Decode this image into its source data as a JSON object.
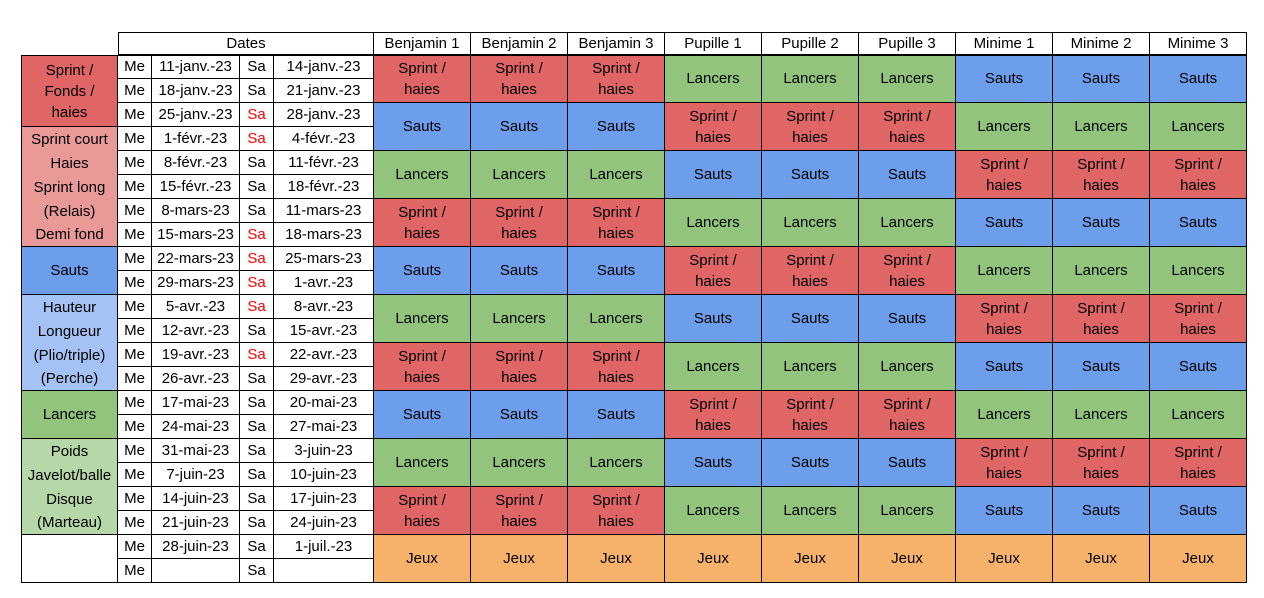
{
  "colors": {
    "sprint": "#e06666",
    "sauts": "#6d9eeb",
    "lancers": "#93c47d",
    "jeux": "#f6b26b",
    "sprint_light": "#ea9999",
    "sauts_light": "#a4c2f4",
    "lancers_light": "#b6d7a8",
    "weekend_red": "#ff0000"
  },
  "header": {
    "dates": "Dates",
    "groups": [
      "Benjamin 1",
      "Benjamin 2",
      "Benjamin 3",
      "Pupille 1",
      "Pupille 2",
      "Pupille 3",
      "Minime 1",
      "Minime 2",
      "Minime 3"
    ]
  },
  "sections": [
    {
      "label": "Sprint /\nFonds /\nhaies",
      "color": "sprint"
    },
    {
      "label": "Sprint court",
      "color": "sprint_light"
    },
    {
      "label": "Haies",
      "color": "sprint_light"
    },
    {
      "label": "Sprint long",
      "color": "sprint_light"
    },
    {
      "label": "(Relais)",
      "color": "sprint_light"
    },
    {
      "label": "Demi fond",
      "color": "sprint_light"
    },
    {
      "label": "Sauts",
      "color": "sauts"
    },
    {
      "label": "Hauteur",
      "color": "sauts_light"
    },
    {
      "label": "Longueur",
      "color": "sauts_light"
    },
    {
      "label": "(Plio/triple)",
      "color": "sauts_light"
    },
    {
      "label": "(Perche)",
      "color": "sauts_light"
    },
    {
      "label": "Lancers",
      "color": "lancers"
    },
    {
      "label": "Poids",
      "color": "lancers_light"
    },
    {
      "label": "Javelot/balle",
      "color": "lancers_light"
    },
    {
      "label": "Disque",
      "color": "lancers_light"
    },
    {
      "label": "(Marteau)",
      "color": "lancers_light"
    },
    {
      "label": "",
      "color": "white"
    }
  ],
  "rows": [
    {
      "me": "Me",
      "wed": "11-janv.-23",
      "sa": "Sa",
      "sa_red": false,
      "sat": "14-janv.-23"
    },
    {
      "me": "Me",
      "wed": "18-janv.-23",
      "sa": "Sa",
      "sa_red": false,
      "sat": "21-janv.-23"
    },
    {
      "me": "Me",
      "wed": "25-janv.-23",
      "sa": "Sa",
      "sa_red": true,
      "sat": "28-janv.-23"
    },
    {
      "me": "Me",
      "wed": "1-févr.-23",
      "sa": "Sa",
      "sa_red": true,
      "sat": "4-févr.-23"
    },
    {
      "me": "Me",
      "wed": "8-févr.-23",
      "sa": "Sa",
      "sa_red": false,
      "sat": "11-févr.-23"
    },
    {
      "me": "Me",
      "wed": "15-févr.-23",
      "sa": "Sa",
      "sa_red": false,
      "sat": "18-févr.-23"
    },
    {
      "me": "Me",
      "wed": "8-mars-23",
      "sa": "Sa",
      "sa_red": false,
      "sat": "11-mars-23"
    },
    {
      "me": "Me",
      "wed": "15-mars-23",
      "sa": "Sa",
      "sa_red": true,
      "sat": "18-mars-23"
    },
    {
      "me": "Me",
      "wed": "22-mars-23",
      "sa": "Sa",
      "sa_red": true,
      "sat": "25-mars-23"
    },
    {
      "me": "Me",
      "wed": "29-mars-23",
      "sa": "Sa",
      "sa_red": true,
      "sat": "1-avr.-23"
    },
    {
      "me": "Me",
      "wed": "5-avr.-23",
      "sa": "Sa",
      "sa_red": true,
      "sat": "8-avr.-23"
    },
    {
      "me": "Me",
      "wed": "12-avr.-23",
      "sa": "Sa",
      "sa_red": false,
      "sat": "15-avr.-23"
    },
    {
      "me": "Me",
      "wed": "19-avr.-23",
      "sa": "Sa",
      "sa_red": true,
      "sat": "22-avr.-23"
    },
    {
      "me": "Me",
      "wed": "26-avr.-23",
      "sa": "Sa",
      "sa_red": false,
      "sat": "29-avr.-23"
    },
    {
      "me": "Me",
      "wed": "17-mai-23",
      "sa": "Sa",
      "sa_red": false,
      "sat": "20-mai-23"
    },
    {
      "me": "Me",
      "wed": "24-mai-23",
      "sa": "Sa",
      "sa_red": false,
      "sat": "27-mai-23"
    },
    {
      "me": "Me",
      "wed": "31-mai-23",
      "sa": "Sa",
      "sa_red": false,
      "sat": "3-juin-23"
    },
    {
      "me": "Me",
      "wed": "7-juin-23",
      "sa": "Sa",
      "sa_red": false,
      "sat": "10-juin-23"
    },
    {
      "me": "Me",
      "wed": "14-juin-23",
      "sa": "Sa",
      "sa_red": false,
      "sat": "17-juin-23"
    },
    {
      "me": "Me",
      "wed": "21-juin-23",
      "sa": "Sa",
      "sa_red": false,
      "sat": "24-juin-23"
    },
    {
      "me": "Me",
      "wed": "28-juin-23",
      "sa": "Sa",
      "sa_red": false,
      "sat": "1-juil.-23"
    },
    {
      "me": "Me",
      "wed": "",
      "sa": "Sa",
      "sa_red": false,
      "sat": ""
    }
  ],
  "activity_labels": {
    "sprint": "Sprint /\nhaies",
    "sauts": "Sauts",
    "lancers": "Lancers",
    "jeux": "Jeux"
  },
  "schedule": {
    "benjamin": [
      "sprint",
      "sauts",
      "lancers",
      "sprint",
      "sauts",
      "lancers",
      "sprint",
      "sauts",
      "lancers",
      "sprint",
      "jeux"
    ],
    "pupille": [
      "lancers",
      "sprint",
      "sauts",
      "lancers",
      "sprint",
      "sauts",
      "lancers",
      "sprint",
      "sauts",
      "lancers",
      "jeux"
    ],
    "minime": [
      "sauts",
      "lancers",
      "sprint",
      "sauts",
      "lancers",
      "sprint",
      "sauts",
      "lancers",
      "sprint",
      "sauts",
      "jeux"
    ]
  }
}
